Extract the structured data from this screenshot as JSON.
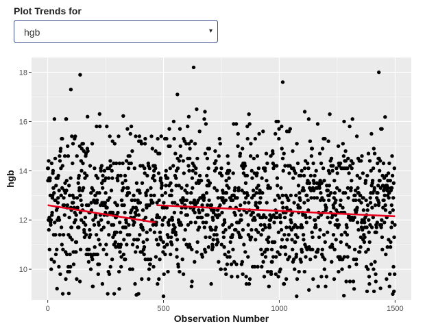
{
  "control": {
    "label": "Plot Trends for",
    "selected": "hgb",
    "caret": "▾"
  },
  "colors": {
    "panel_bg": "#EBEBEB",
    "grid_major": "#FFFFFF",
    "point": "#000000",
    "trend": "#E8001C",
    "select_border": "#3B4B8F"
  },
  "chart_data": {
    "type": "scatter",
    "title": "",
    "xlabel": "Observation Number",
    "ylabel": "hgb",
    "xlim": [
      -70,
      1570
    ],
    "ylim": [
      8.75,
      18.6
    ],
    "x_ticks": [
      0,
      500,
      1000,
      1500
    ],
    "x_tick_labels": [
      "0",
      "500",
      "1000",
      "1500"
    ],
    "y_ticks": [
      10,
      12,
      14,
      16,
      18
    ],
    "y_tick_labels": [
      "10",
      "12",
      "14",
      "16",
      "18"
    ],
    "grid": true,
    "legend": "none",
    "n_points": 1500,
    "point_summary": {
      "y_range": [
        8.9,
        18.2
      ],
      "typical_range": [
        9.5,
        15.5
      ],
      "center": 12.5
    },
    "notable_points": [
      {
        "x": 140,
        "y": 17.9
      },
      {
        "x": 100,
        "y": 17.3
      },
      {
        "x": 630,
        "y": 18.2
      },
      {
        "x": 560,
        "y": 17.1
      },
      {
        "x": 1015,
        "y": 17.6
      },
      {
        "x": 1430,
        "y": 18.0
      },
      {
        "x": 1280,
        "y": 16.0
      },
      {
        "x": 1110,
        "y": 16.4
      }
    ],
    "trend_segments": [
      {
        "name": "segment-1",
        "x": [
          0,
          465
        ],
        "y": [
          12.6,
          11.9
        ]
      },
      {
        "name": "segment-2",
        "x": [
          470,
          1500
        ],
        "y": [
          12.6,
          12.15
        ]
      }
    ]
  }
}
